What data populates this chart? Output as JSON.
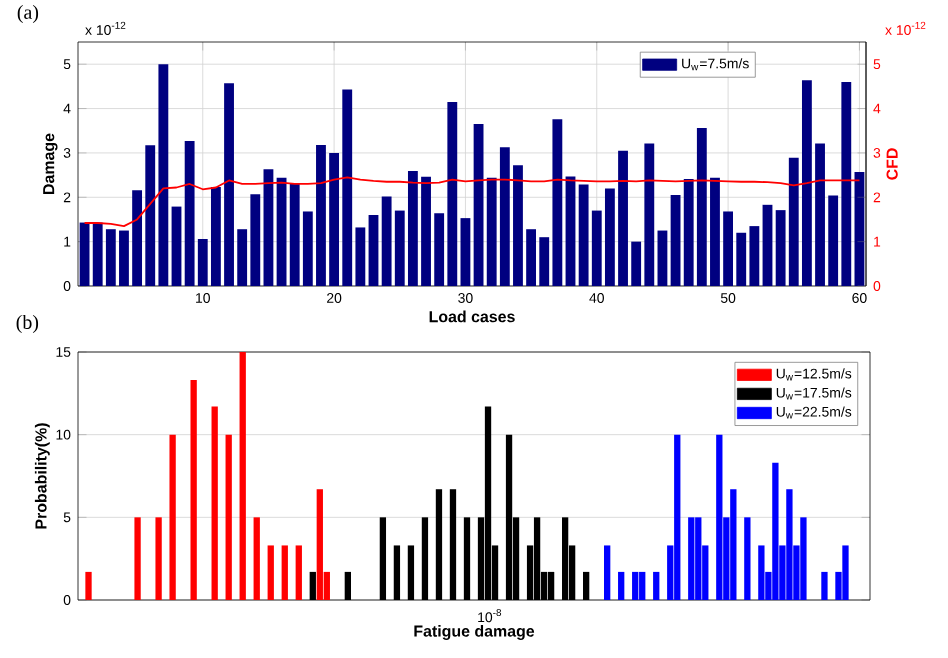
{
  "chart_data": [
    {
      "type": "bar",
      "title": "(a)",
      "xlabel": "Load cases",
      "ylabel": "Damage",
      "y2label": "CFD",
      "annotations": [
        "x 10$^{-12}$",
        "x 10$^{-12}$"
      ],
      "x": [
        1,
        2,
        3,
        4,
        5,
        6,
        7,
        8,
        9,
        10,
        11,
        12,
        13,
        14,
        15,
        16,
        17,
        18,
        19,
        20,
        21,
        22,
        23,
        24,
        25,
        26,
        27,
        28,
        29,
        30,
        31,
        32,
        33,
        34,
        35,
        36,
        37,
        38,
        39,
        40,
        41,
        42,
        43,
        44,
        45,
        46,
        47,
        48,
        49,
        50,
        51,
        52,
        53,
        54,
        55,
        56,
        57,
        58,
        59,
        60
      ],
      "xlim": [
        0.5,
        60.5
      ],
      "xticks": [
        10,
        20,
        30,
        40,
        50,
        60
      ],
      "ylim": [
        0,
        5.5
      ],
      "yticks": [
        0,
        1,
        2,
        3,
        4,
        5
      ],
      "y2lim": [
        0,
        5.5
      ],
      "y2ticks": [
        0,
        1,
        2,
        3,
        4,
        5
      ],
      "grid": true,
      "legend": "top right",
      "series": [
        {
          "name": "U$_{w}$=7.5m/s",
          "color": "#000080",
          "values": [
            1.43,
            1.43,
            1.28,
            1.25,
            2.16,
            3.17,
            5.0,
            1.79,
            3.27,
            1.06,
            2.23,
            4.57,
            1.28,
            2.07,
            2.63,
            2.44,
            2.31,
            1.68,
            3.18,
            3.0,
            4.43,
            1.32,
            1.6,
            2.02,
            1.7,
            2.59,
            2.46,
            1.64,
            4.15,
            1.53,
            3.65,
            2.44,
            3.13,
            2.72,
            1.28,
            1.1,
            3.76,
            2.47,
            2.29,
            1.7,
            2.2,
            3.05,
            1.0,
            3.21,
            1.25,
            2.05,
            2.41,
            3.56,
            2.44,
            1.68,
            1.2,
            1.35,
            1.83,
            1.71,
            2.89,
            4.64,
            3.21,
            2.04,
            4.6,
            2.57
          ]
        },
        {
          "type": "line",
          "axis": "y2",
          "color": "#ff0000",
          "values": [
            1.42,
            1.42,
            1.4,
            1.35,
            1.5,
            1.85,
            2.2,
            2.22,
            2.3,
            2.18,
            2.22,
            2.38,
            2.3,
            2.3,
            2.32,
            2.33,
            2.3,
            2.3,
            2.32,
            2.4,
            2.45,
            2.4,
            2.37,
            2.35,
            2.35,
            2.33,
            2.32,
            2.33,
            2.4,
            2.36,
            2.38,
            2.4,
            2.4,
            2.38,
            2.36,
            2.36,
            2.4,
            2.38,
            2.37,
            2.36,
            2.36,
            2.37,
            2.36,
            2.38,
            2.37,
            2.36,
            2.37,
            2.38,
            2.37,
            2.36,
            2.35,
            2.35,
            2.34,
            2.32,
            2.27,
            2.32,
            2.38,
            2.38,
            2.38,
            2.38
          ]
        }
      ]
    },
    {
      "type": "bar",
      "title": "(b)",
      "xlabel": "Fatigue damage",
      "ylabel": "Probability(%)",
      "annotations": [
        "10$^{-8}$"
      ],
      "categories": [
        null,
        null,
        null,
        null,
        null,
        null,
        null,
        null,
        null,
        null,
        null,
        null,
        null,
        null,
        null,
        null,
        null,
        null,
        null,
        null,
        null,
        null,
        null,
        null,
        null,
        null,
        null,
        null,
        null,
        null,
        null,
        null,
        null,
        null,
        null,
        null,
        null,
        null,
        null,
        null,
        null,
        null,
        null,
        null,
        null,
        null,
        null,
        null,
        null,
        null,
        null,
        null,
        null,
        null,
        null,
        null,
        null,
        null,
        null,
        null,
        null,
        null,
        null,
        null,
        null,
        null,
        null,
        null,
        null,
        null,
        null,
        null,
        null,
        null,
        null,
        null,
        null,
        null,
        null,
        null,
        null,
        null,
        null,
        null,
        null,
        null,
        null,
        null,
        null,
        null,
        null,
        null,
        null,
        null,
        null,
        null,
        null,
        null,
        null,
        null,
        null,
        null,
        null,
        null,
        null,
        null,
        null,
        null,
        null,
        null,
        null,
        null,
        null
      ],
      "ylim": [
        0,
        15
      ],
      "yticks": [
        0,
        5,
        10,
        15
      ],
      "grid": "y",
      "legend": "top right",
      "series": [
        {
          "name": "U$_{w}$=12.5m/s",
          "color": "#ff0000",
          "values": [
            null,
            1.7,
            null,
            null,
            null,
            null,
            null,
            null,
            5,
            null,
            null,
            5,
            null,
            10,
            null,
            null,
            13.3,
            null,
            null,
            11.7,
            null,
            10,
            null,
            15,
            null,
            5,
            null,
            3.3,
            null,
            3.3,
            null,
            3.3,
            null,
            null,
            6.7,
            1.7,
            null,
            null,
            null,
            null,
            null,
            null,
            null,
            null,
            null,
            null,
            null,
            null,
            null,
            null,
            null,
            null,
            null,
            null,
            null,
            null,
            null,
            null,
            null,
            null,
            null,
            null,
            null,
            null,
            null,
            null,
            null,
            null,
            null,
            null,
            null,
            null,
            null,
            null,
            null,
            null,
            null,
            null,
            null,
            null,
            null,
            null,
            null,
            null,
            null,
            null,
            null,
            null,
            null,
            null,
            null,
            null,
            null,
            null,
            null,
            null,
            null,
            null,
            null,
            null,
            null,
            null,
            null,
            null,
            null,
            null,
            null,
            null,
            null,
            null,
            null,
            null,
            null
          ]
        },
        {
          "name": "U$_{w}$=17.5m/s",
          "color": "#000000",
          "values": [
            null,
            null,
            null,
            null,
            null,
            null,
            null,
            null,
            null,
            null,
            null,
            null,
            null,
            null,
            null,
            null,
            null,
            null,
            null,
            null,
            null,
            null,
            null,
            null,
            null,
            null,
            null,
            null,
            null,
            null,
            null,
            null,
            null,
            1.7,
            null,
            null,
            null,
            null,
            1.7,
            null,
            null,
            null,
            null,
            5,
            null,
            3.3,
            null,
            3.3,
            null,
            5,
            null,
            6.7,
            null,
            6.7,
            null,
            5,
            null,
            5,
            11.7,
            3.3,
            null,
            10,
            5,
            null,
            3.3,
            5,
            1.7,
            1.7,
            null,
            5,
            3.3,
            null,
            1.7,
            null,
            null,
            null,
            null,
            null,
            null,
            null,
            null,
            null,
            null,
            null,
            null,
            null,
            null,
            null,
            null,
            null,
            null,
            null,
            null,
            null,
            null,
            null,
            null,
            null,
            null,
            null,
            null,
            null,
            null,
            null,
            null,
            null,
            null,
            null,
            null,
            null,
            null,
            null,
            null
          ]
        },
        {
          "name": "U$_{w}$=22.5m/s",
          "color": "#0000ff",
          "values": [
            null,
            null,
            null,
            null,
            null,
            null,
            null,
            null,
            null,
            null,
            null,
            null,
            null,
            null,
            null,
            null,
            null,
            null,
            null,
            null,
            null,
            null,
            null,
            null,
            null,
            null,
            null,
            null,
            null,
            null,
            null,
            null,
            null,
            null,
            null,
            null,
            null,
            null,
            null,
            null,
            null,
            null,
            null,
            null,
            null,
            null,
            null,
            null,
            null,
            null,
            null,
            null,
            null,
            null,
            null,
            null,
            null,
            null,
            null,
            null,
            null,
            null,
            null,
            null,
            null,
            null,
            null,
            null,
            null,
            null,
            null,
            null,
            null,
            null,
            null,
            3.3,
            null,
            1.7,
            null,
            1.7,
            1.7,
            null,
            1.7,
            null,
            3.3,
            10,
            null,
            5,
            5,
            3.3,
            null,
            10,
            5,
            6.7,
            null,
            5,
            null,
            3.3,
            1.7,
            8.3,
            3.3,
            6.7,
            3.3,
            5,
            null,
            null,
            1.7,
            null,
            1.7,
            3.3,
            null,
            null,
            null
          ]
        }
      ]
    }
  ]
}
